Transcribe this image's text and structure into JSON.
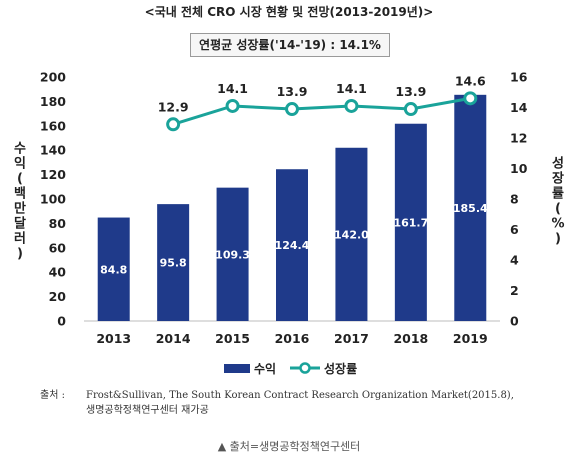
{
  "title": "<국내 전체 CRO 시장 현황 및 전망(2013-2019년)>",
  "cagr_label": "연평균 성장률('14-'19) : 14.1%",
  "source": {
    "label": "출처 :",
    "line1": "Frost&Sullivan, The South Korean Contract Research Organization Market(2015.8),",
    "line2": "생명공학정책연구센터 재가공"
  },
  "credit": "▲ 출처=생명공학정책연구센터",
  "colors": {
    "bar": "#1f3a8a",
    "line": "#1aa39a",
    "marker_fill": "#ffffff"
  },
  "chart_data": {
    "type": "bar",
    "categories": [
      "2013",
      "2014",
      "2015",
      "2016",
      "2017",
      "2018",
      "2019"
    ],
    "ylabel": "수익(백만달러)",
    "y2label": "성장률(%)",
    "ylim": [
      0,
      200
    ],
    "y2lim": [
      0,
      16
    ],
    "yticks": [
      "0",
      "20",
      "40",
      "60",
      "80",
      "100",
      "120",
      "140",
      "160",
      "180",
      "200"
    ],
    "y2ticks": [
      "0",
      "2",
      "4",
      "6",
      "8",
      "10",
      "12",
      "14",
      "16"
    ],
    "legend_position": "bottom",
    "series": [
      {
        "name": "수익",
        "type": "bar",
        "values": [
          84.8,
          95.8,
          109.3,
          124.4,
          142.0,
          161.7,
          185.4
        ],
        "labels": [
          "84.8",
          "95.8",
          "109.3",
          "124.4",
          "142.0",
          "161.7",
          "185.4"
        ]
      },
      {
        "name": "성장률",
        "type": "line",
        "axis": "right",
        "values": [
          null,
          12.9,
          14.1,
          13.9,
          14.1,
          13.9,
          14.6
        ],
        "labels": [
          "",
          "12.9",
          "14.1",
          "13.9",
          "14.1",
          "13.9",
          "14.6"
        ]
      }
    ]
  }
}
